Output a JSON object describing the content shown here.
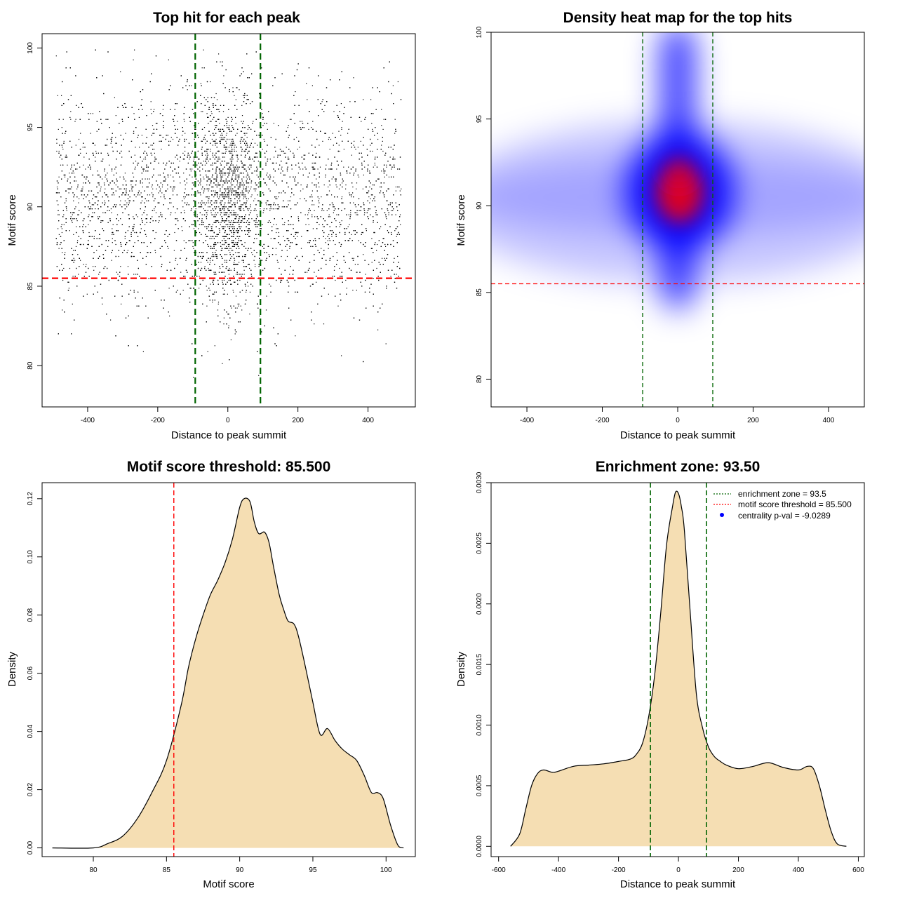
{
  "chart_data": [
    {
      "id": "p1",
      "type": "scatter",
      "title": "Top hit for each peak",
      "xlabel": "Distance to peak summit",
      "ylabel": "Motif score",
      "xlim": [
        -530,
        535
      ],
      "ylim": [
        77.4,
        100.9
      ],
      "xticks": [
        -400,
        -200,
        0,
        200,
        400
      ],
      "yticks": [
        80,
        85,
        90,
        95,
        100
      ],
      "xtick_labels": [
        "-400",
        "-200",
        "0",
        "200",
        "400"
      ],
      "ytick_labels": [
        "80",
        "85",
        "90",
        "95",
        "100"
      ],
      "point_count_approx": 9000,
      "point_distribution": {
        "x_range": [
          -490,
          495
        ],
        "y_mean": 90.5,
        "y_sd": 3.3,
        "central_excess_sd": 45
      },
      "vlines": [
        {
          "x": -93,
          "color": "#006400",
          "style": "dashed"
        },
        {
          "x": 93,
          "color": "#006400",
          "style": "dashed"
        }
      ],
      "hlines": [
        {
          "y": 85.5,
          "color": "#ff0000",
          "style": "dashed"
        }
      ],
      "grid": false
    },
    {
      "id": "p2",
      "type": "heatmap",
      "title": "Density heat map for the top hits",
      "xlabel": "Distance to peak summit",
      "ylabel": "Motif score",
      "xlim": [
        -495,
        495
      ],
      "ylim": [
        78.4,
        100
      ],
      "xticks": [
        -400,
        -200,
        0,
        200,
        400
      ],
      "yticks": [
        80,
        85,
        90,
        95,
        100
      ],
      "xtick_labels": [
        "-400",
        "-200",
        "0",
        "200",
        "400"
      ],
      "ytick_labels": [
        "80",
        "85",
        "90",
        "95",
        "100"
      ],
      "color_scale": [
        "#ffffff",
        "#0000ff",
        "#ff0000"
      ],
      "density_peak": {
        "x": 5,
        "y": 90.8
      },
      "vlines": [
        {
          "x": -93,
          "color": "#006400",
          "style": "dashed"
        },
        {
          "x": 93,
          "color": "#006400",
          "style": "dashed"
        }
      ],
      "hlines": [
        {
          "y": 85.5,
          "color": "#ff0000",
          "style": "dashed"
        }
      ],
      "grid": false
    },
    {
      "id": "p3",
      "type": "area",
      "title": "Motif score threshold: 85.500",
      "xlabel": "Motif score",
      "ylabel": "Density",
      "xlim": [
        76.5,
        102
      ],
      "ylim": [
        -0.003,
        0.1255
      ],
      "xticks": [
        80,
        85,
        90,
        95,
        100
      ],
      "yticks": [
        0.0,
        0.02,
        0.04,
        0.06,
        0.08,
        0.1,
        0.12
      ],
      "xtick_labels": [
        "80",
        "85",
        "90",
        "95",
        "100"
      ],
      "ytick_labels": [
        "0.00",
        "0.02",
        "0.04",
        "0.06",
        "0.08",
        "0.10",
        "0.12"
      ],
      "fill": "#f5deb3",
      "series": [
        {
          "x": [
            77.2,
            80,
            81,
            82,
            83,
            84,
            85,
            86,
            86.5,
            87,
            87.5,
            88,
            88.5,
            89,
            89.5,
            90,
            90.3,
            90.7,
            91,
            91.3,
            91.7,
            92,
            92.3,
            92.7,
            93,
            93.3,
            93.7,
            94,
            94.5,
            95,
            95.5,
            96,
            96.5,
            97,
            97.5,
            98,
            98.5,
            99,
            99.4,
            99.8,
            100.3,
            100.8,
            101.2
          ],
          "y": [
            0.0,
            0.0,
            0.0015,
            0.004,
            0.01,
            0.019,
            0.03,
            0.049,
            0.062,
            0.072,
            0.08,
            0.087,
            0.092,
            0.098,
            0.106,
            0.117,
            0.12,
            0.119,
            0.112,
            0.108,
            0.1085,
            0.105,
            0.097,
            0.087,
            0.082,
            0.078,
            0.077,
            0.073,
            0.062,
            0.05,
            0.039,
            0.041,
            0.037,
            0.034,
            0.032,
            0.03,
            0.025,
            0.019,
            0.019,
            0.017,
            0.008,
            0.001,
            0.0
          ]
        }
      ],
      "vlines": [
        {
          "x": 85.5,
          "color": "#ff0000",
          "style": "dashed"
        }
      ],
      "grid": false
    },
    {
      "id": "p4",
      "type": "area",
      "title": "Enrichment zone: 93.50",
      "xlabel": "Distance to peak summit",
      "ylabel": "Density",
      "xlim": [
        -625,
        620
      ],
      "ylim": [
        -8.5e-05,
        0.003
      ],
      "xticks": [
        -600,
        -400,
        -200,
        0,
        200,
        400,
        600
      ],
      "yticks": [
        0.0,
        0.0005,
        0.001,
        0.0015,
        0.002,
        0.0025,
        0.003
      ],
      "xtick_labels": [
        "-600",
        "-400",
        "-200",
        "0",
        "200",
        "400",
        "600"
      ],
      "ytick_labels": [
        "0.0000",
        "0.0005",
        "0.0010",
        "0.0015",
        "0.0020",
        "0.0025",
        "0.0030"
      ],
      "fill": "#f5deb3",
      "series": [
        {
          "x": [
            -560,
            -530,
            -510,
            -490,
            -470,
            -450,
            -420,
            -400,
            -350,
            -300,
            -250,
            -200,
            -160,
            -140,
            -120,
            -100,
            -80,
            -60,
            -40,
            -20,
            -10,
            0,
            10,
            20,
            40,
            60,
            80,
            100,
            120,
            140,
            160,
            200,
            250,
            300,
            350,
            400,
            430,
            450,
            470,
            490,
            510,
            530,
            560
          ],
          "y": [
            0.0,
            0.0001,
            0.0003,
            0.0005,
            0.0006,
            0.00063,
            0.00061,
            0.00062,
            0.00066,
            0.00067,
            0.00068,
            0.0007,
            0.00072,
            0.00076,
            0.00085,
            0.00106,
            0.0014,
            0.0019,
            0.00248,
            0.0028,
            0.00292,
            0.00291,
            0.0028,
            0.0026,
            0.0019,
            0.00125,
            0.00098,
            0.00082,
            0.00074,
            0.0007,
            0.00067,
            0.00064,
            0.00066,
            0.00069,
            0.00065,
            0.00063,
            0.00066,
            0.00064,
            0.0005,
            0.0003,
            0.00012,
            2e-05,
            0.0
          ]
        }
      ],
      "vlines": [
        {
          "x": -93.5,
          "color": "#006400",
          "style": "dashed"
        },
        {
          "x": 93.5,
          "color": "#006400",
          "style": "dashed"
        }
      ],
      "legend": {
        "position": "top-right",
        "items": [
          {
            "label": "enrichment zone = 93.5",
            "color": "#006400",
            "marker": "dotted-line"
          },
          {
            "label": "motif score threshold = 85.500",
            "color": "#ff0000",
            "marker": "dotted-line"
          },
          {
            "label": "centrality p-val = -9.0289",
            "color": "#0000ff",
            "marker": "dot"
          }
        ]
      },
      "grid": false
    }
  ]
}
